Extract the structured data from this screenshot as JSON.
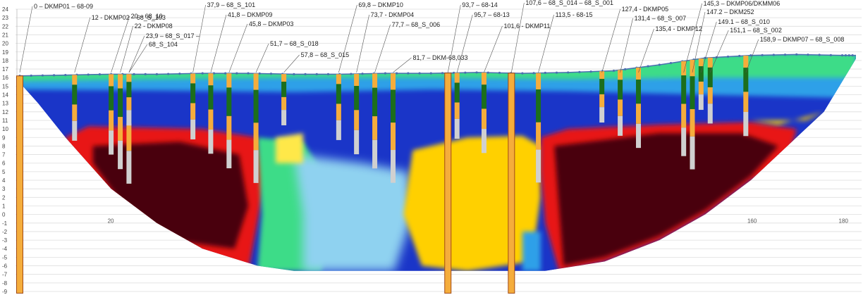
{
  "chart_data": {
    "type": "cross-section",
    "title": "",
    "xlabel": "",
    "ylabel": "",
    "x_axis": {
      "min": 0,
      "max": 183,
      "ticks": [
        0,
        20,
        40,
        60,
        80,
        100,
        120,
        140,
        160,
        180
      ]
    },
    "y_axis": {
      "min": -9,
      "max": 24,
      "ticks": [
        24,
        23,
        22,
        21,
        20,
        19,
        18,
        17,
        16,
        15,
        14,
        13,
        12,
        11,
        10,
        9,
        8,
        7,
        6,
        5,
        4,
        3,
        2,
        1,
        0,
        -1,
        -2,
        -3,
        -4,
        -5,
        -6,
        -7,
        -8,
        -9
      ]
    },
    "grid": "horizontal",
    "surface_profile": [
      {
        "x": 0,
        "y": 16.2
      },
      {
        "x": 10,
        "y": 16.3
      },
      {
        "x": 20,
        "y": 16.4
      },
      {
        "x": 30,
        "y": 16.4
      },
      {
        "x": 40,
        "y": 16.5
      },
      {
        "x": 50,
        "y": 16.5
      },
      {
        "x": 60,
        "y": 16.4
      },
      {
        "x": 70,
        "y": 16.4
      },
      {
        "x": 80,
        "y": 16.5
      },
      {
        "x": 90,
        "y": 16.5
      },
      {
        "x": 100,
        "y": 16.6
      },
      {
        "x": 110,
        "y": 16.5
      },
      {
        "x": 120,
        "y": 16.6
      },
      {
        "x": 130,
        "y": 16.8
      },
      {
        "x": 140,
        "y": 17.5
      },
      {
        "x": 150,
        "y": 18.3
      },
      {
        "x": 160,
        "y": 18.6
      },
      {
        "x": 170,
        "y": 18.7
      },
      {
        "x": 180,
        "y": 18.6
      },
      {
        "x": 183,
        "y": 18.6
      }
    ],
    "boreholes": [
      {
        "x": 0,
        "label": "0 – DKMP01 – 68-09"
      },
      {
        "x": 12,
        "label": "12 - DKMP02 – 68_S_103"
      },
      {
        "x": 20,
        "label": "20 – 68_10"
      },
      {
        "x": 22,
        "label": "22 - DKMP08"
      },
      {
        "x": 23.9,
        "label": "23,9 – 68_S_017 –"
      },
      {
        "x": 23.9,
        "label": "68_S_104"
      },
      {
        "x": 37.9,
        "label": "37,9 – 68_S_101"
      },
      {
        "x": 41.8,
        "label": "41,8 – DKMP09"
      },
      {
        "x": 45.8,
        "label": "45,8 – DKMP03"
      },
      {
        "x": 51.7,
        "label": "51,7 – 68_S_018"
      },
      {
        "x": 57.8,
        "label": "57,8 – 68_S_015"
      },
      {
        "x": 69.8,
        "label": "69,8 – DKMP10"
      },
      {
        "x": 73.7,
        "label": "73,7 - DKMP04"
      },
      {
        "x": 77.7,
        "label": "77,7 – 68_S_006"
      },
      {
        "x": 81.7,
        "label": "81,7 – DKM-68,033"
      },
      {
        "x": 93.7,
        "label": "93,7 – 68-14"
      },
      {
        "x": 95.7,
        "label": "95,7 – 68-13"
      },
      {
        "x": 101.6,
        "label": "101,6 - DKMP11"
      },
      {
        "x": 107.6,
        "label": "107,6 – 68_S_014 – 68_S_001"
      },
      {
        "x": 113.5,
        "label": "113,5 - 68-15"
      },
      {
        "x": 127.4,
        "label": "127,4 - DKMP05"
      },
      {
        "x": 131.4,
        "label": "131,4 – 68_S_007"
      },
      {
        "x": 135.4,
        "label": "135,4 - DKMP12"
      },
      {
        "x": 145.3,
        "label": "145,3 – DKMP06/DKMM06"
      },
      {
        "x": 147.2,
        "label": "147.2 – DKM252"
      },
      {
        "x": 149.1,
        "label": "149.1 – 68_S_010"
      },
      {
        "x": 151.1,
        "label": "151,1 – 68_S_002"
      },
      {
        "x": 158.9,
        "label": "158,9 – DKMP07 – 68_S_008"
      }
    ],
    "colors": {
      "very_low": "#1a35c8",
      "low": "#2ea0e8",
      "mid": "#3ddc88",
      "mid_high": "#eeee44",
      "high": "#ffd000",
      "very_high": "#e81818",
      "extreme": "#4a0010",
      "borehole_orange": "#f5ad3c",
      "borehole_green": "#1c6e1c",
      "borehole_grey": "#d0d0d0",
      "surface_line": "#4a6fb0"
    }
  }
}
